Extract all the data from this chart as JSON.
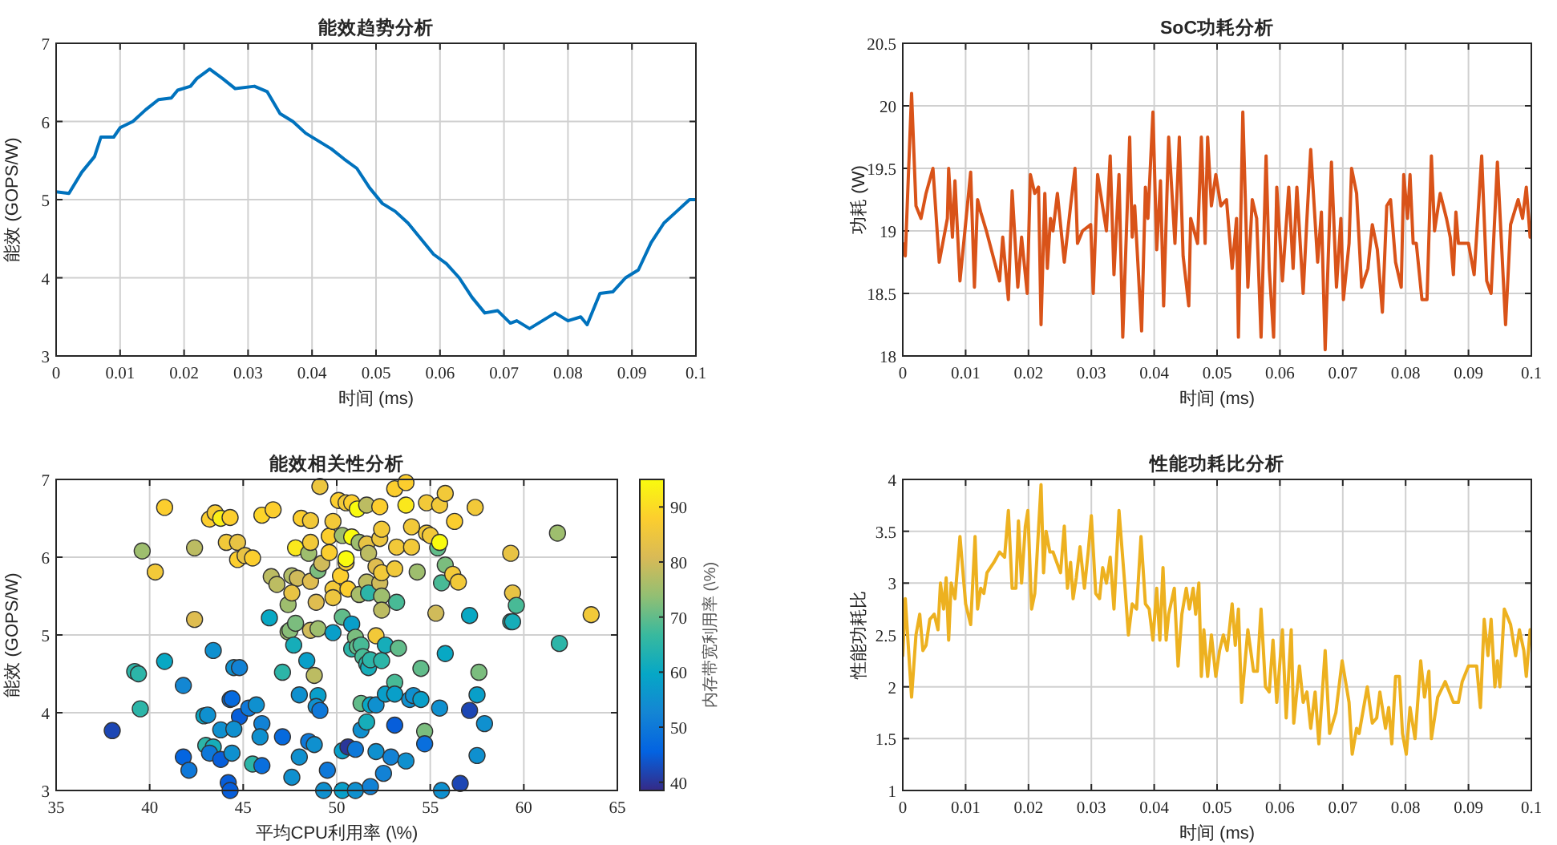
{
  "chart_data": [
    {
      "type": "line",
      "title": "能效趋势分析",
      "xlabel": "时间 (ms)",
      "ylabel": "能效 (GOPS/W)",
      "xlim": [
        0,
        0.1
      ],
      "ylim": [
        3,
        7
      ],
      "xticks": [
        0,
        0.01,
        0.02,
        0.03,
        0.04,
        0.05,
        0.06,
        0.07,
        0.08,
        0.09,
        0.1
      ],
      "yticks": [
        3,
        4,
        5,
        6,
        7
      ],
      "grid": true,
      "marker": "none",
      "series": [
        {
          "color": "#0072bd",
          "x": [
            0,
            0.002,
            0.004,
            0.006,
            0.007,
            0.009,
            0.01,
            0.012,
            0.014,
            0.016,
            0.018,
            0.019,
            0.021,
            0.022,
            0.024,
            0.026,
            0.028,
            0.031,
            0.033,
            0.035,
            0.037,
            0.039,
            0.041,
            0.043,
            0.045,
            0.047,
            0.049,
            0.051,
            0.053,
            0.055,
            0.057,
            0.059,
            0.061,
            0.063,
            0.065,
            0.067,
            0.069,
            0.071,
            0.072,
            0.074,
            0.076,
            0.078,
            0.08,
            0.082,
            0.083,
            0.085,
            0.087,
            0.089,
            0.091,
            0.093,
            0.095,
            0.097,
            0.099,
            0.1
          ],
          "values": [
            5.1,
            5.08,
            5.35,
            5.55,
            5.8,
            5.8,
            5.92,
            6.0,
            6.15,
            6.28,
            6.3,
            6.4,
            6.45,
            6.55,
            6.67,
            6.55,
            6.42,
            6.45,
            6.38,
            6.1,
            6.0,
            5.85,
            5.75,
            5.65,
            5.52,
            5.4,
            5.15,
            4.95,
            4.85,
            4.7,
            4.5,
            4.3,
            4.18,
            4.0,
            3.75,
            3.55,
            3.58,
            3.42,
            3.45,
            3.35,
            3.45,
            3.55,
            3.45,
            3.5,
            3.4,
            3.8,
            3.82,
            4.0,
            4.1,
            4.45,
            4.7,
            4.85,
            5.0,
            5.0
          ]
        }
      ]
    },
    {
      "type": "line",
      "title": "SoC功耗分析",
      "xlabel": "时间 (ms)",
      "ylabel": "功耗 (W)",
      "xlim": [
        0,
        0.1
      ],
      "ylim": [
        18,
        20.5
      ],
      "xticks": [
        0,
        0.01,
        0.02,
        0.03,
        0.04,
        0.05,
        0.06,
        0.07,
        0.08,
        0.09,
        0.1
      ],
      "yticks": [
        18,
        18.5,
        19,
        19.5,
        20,
        20.5
      ],
      "grid": true,
      "marker": "none",
      "series": [
        {
          "color": "#d95319",
          "x": [
            0,
            0.0004,
            0.0014,
            0.0021,
            0.0029,
            0.0037,
            0.0048,
            0.0058,
            0.0071,
            0.0073,
            0.0079,
            0.0083,
            0.0091,
            0.0108,
            0.0114,
            0.0119,
            0.0124,
            0.0133,
            0.0154,
            0.0159,
            0.0168,
            0.0174,
            0.0183,
            0.0189,
            0.0198,
            0.0203,
            0.021,
            0.0216,
            0.022,
            0.0226,
            0.023,
            0.0235,
            0.0239,
            0.0246,
            0.0257,
            0.0267,
            0.0274,
            0.0278,
            0.0286,
            0.0299,
            0.0303,
            0.031,
            0.0324,
            0.033,
            0.0336,
            0.0344,
            0.035,
            0.0361,
            0.0365,
            0.0369,
            0.038,
            0.0386,
            0.039,
            0.0398,
            0.0404,
            0.041,
            0.0415,
            0.0423,
            0.0433,
            0.044,
            0.0446,
            0.0455,
            0.0458,
            0.0469,
            0.0475,
            0.0481,
            0.0485,
            0.0491,
            0.0498,
            0.0506,
            0.0515,
            0.0524,
            0.0531,
            0.0534,
            0.0541,
            0.0549,
            0.0556,
            0.0563,
            0.057,
            0.0578,
            0.0583,
            0.059,
            0.0595,
            0.0604,
            0.0614,
            0.0621,
            0.0627,
            0.0637,
            0.0643,
            0.0649,
            0.066,
            0.0666,
            0.0672,
            0.0682,
            0.069,
            0.0697,
            0.0701,
            0.071,
            0.0714,
            0.0722,
            0.073,
            0.074,
            0.0747,
            0.0755,
            0.0763,
            0.077,
            0.0776,
            0.0784,
            0.0793,
            0.0797,
            0.0803,
            0.0807,
            0.0812,
            0.0817,
            0.0826,
            0.0834,
            0.0841,
            0.0846,
            0.0855,
            0.0865,
            0.0871,
            0.0876,
            0.088,
            0.0884,
            0.0888,
            0.09,
            0.0909,
            0.0921,
            0.0929,
            0.0936,
            0.0946,
            0.0959,
            0.0967,
            0.0979,
            0.0986,
            0.0992,
            0.0998
          ],
          "values": [
            18.9,
            18.8,
            20.1,
            19.2,
            19.1,
            19.3,
            19.5,
            18.75,
            19.1,
            19.5,
            18.95,
            19.4,
            18.6,
            19.47,
            18.55,
            19.25,
            19.15,
            19.0,
            18.6,
            18.95,
            18.45,
            19.32,
            18.55,
            18.95,
            18.5,
            19.45,
            19.3,
            19.35,
            18.25,
            19.3,
            18.7,
            19.1,
            19.0,
            19.3,
            18.75,
            19.2,
            19.5,
            18.9,
            19.0,
            19.05,
            18.5,
            19.45,
            19.0,
            19.6,
            18.65,
            19.45,
            18.15,
            19.75,
            18.95,
            19.2,
            18.2,
            19.35,
            19.1,
            19.95,
            18.85,
            19.4,
            18.4,
            19.75,
            18.9,
            19.75,
            18.8,
            18.4,
            19.1,
            18.9,
            19.75,
            18.9,
            19.75,
            19.2,
            19.45,
            19.2,
            19.25,
            18.7,
            19.1,
            18.15,
            19.95,
            18.55,
            19.25,
            19.1,
            18.15,
            19.6,
            18.7,
            18.15,
            19.35,
            18.6,
            19.35,
            18.7,
            19.35,
            18.5,
            19.1,
            19.65,
            18.75,
            19.15,
            18.05,
            19.55,
            18.55,
            19.1,
            18.45,
            18.9,
            19.5,
            19.3,
            18.55,
            18.7,
            19.05,
            18.85,
            18.35,
            19.2,
            19.25,
            18.75,
            18.55,
            19.45,
            19.1,
            19.45,
            18.9,
            18.9,
            18.45,
            18.45,
            19.6,
            19.0,
            19.3,
            19.1,
            18.95,
            18.65,
            19.15,
            18.9,
            18.9,
            18.9,
            18.65,
            19.6,
            18.6,
            18.5,
            19.55,
            18.25,
            19.05,
            19.25,
            19.1,
            19.35,
            18.95
          ]
        }
      ]
    },
    {
      "type": "scatter",
      "title": "能效相关性分析",
      "xlabel": "平均CPU利用率 (\\%)",
      "ylabel": "能效 (GOPS/W)",
      "clabel": "内存带宽利用率 (\\%)",
      "xlim": [
        35,
        65
      ],
      "ylim": [
        3,
        7
      ],
      "xticks": [
        35,
        40,
        45,
        50,
        55,
        60,
        65
      ],
      "yticks": [
        3,
        4,
        5,
        6,
        7
      ],
      "clim": [
        38.5,
        95
      ],
      "cticks": [
        40,
        50,
        60,
        70,
        80,
        90
      ],
      "grid": true,
      "marker": "circle",
      "x": [
        38.0,
        40.8,
        39.6,
        40.3,
        39.2,
        39.4,
        39.5,
        40.8,
        41.8,
        41.8,
        42.1,
        42.4,
        42.4,
        43.2,
        43.5,
        43.8,
        44.3,
        44.1,
        44.7,
        44.7,
        45.1,
        45.5,
        46.0,
        46.6,
        43.4,
        42.9,
        43.1,
        43.0,
        43.4,
        43.2,
        43.8,
        43.8,
        44.3,
        44.4,
        44.5,
        44.8,
        44.8,
        44.5,
        44.4,
        44.2,
        44.3,
        45.3,
        45.7,
        45.5,
        46.0,
        46.0,
        45.9,
        46.4,
        46.5,
        46.8,
        47.1,
        47.1,
        47.4,
        47.5,
        47.4,
        47.6,
        47.9,
        47.6,
        47.7,
        47.8,
        48.1,
        47.8,
        48.0,
        48.0,
        47.6,
        48.4,
        48.5,
        48.8,
        48.5,
        48.6,
        48.6,
        48.6,
        48.6,
        48.8,
        48.9,
        49.0,
        49.0,
        49.0,
        48.9,
        49.1,
        49.1,
        49.2,
        49.3,
        49.5,
        49.6,
        49.6,
        49.8,
        49.8,
        49.8,
        49.8,
        50.1,
        50.2,
        50.3,
        50.3,
        50.3,
        50.3,
        50.6,
        50.5,
        50.5,
        50.5,
        50.6,
        50.8,
        50.8,
        50.8,
        50.8,
        51.0,
        51.0,
        51.0,
        51.1,
        51.1,
        51.2,
        51.2,
        51.3,
        51.3,
        51.3,
        51.4,
        51.6,
        51.6,
        51.6,
        51.6,
        51.6,
        51.7,
        51.7,
        51.7,
        51.8,
        51.8,
        51.8,
        52.1,
        52.1,
        52.1,
        52.1,
        52.3,
        52.3,
        52.3,
        52.4,
        52.4,
        52.4,
        52.4,
        52.4,
        52.5,
        52.6,
        52.6,
        52.9,
        53.1,
        53.1,
        53.1,
        53.1,
        53.1,
        53.2,
        53.2,
        53.3,
        53.7,
        53.7,
        53.7,
        53.9,
        54.0,
        54.0,
        54.1,
        54.3,
        54.5,
        54.5,
        54.7,
        54.7,
        54.8,
        54.8,
        55.0,
        55.3,
        55.4,
        55.5,
        55.5,
        55.5,
        55.6,
        55.6,
        55.8,
        55.8,
        55.8,
        56.2,
        56.3,
        56.5,
        56.6,
        57.1,
        57.1,
        57.4,
        57.5,
        57.5,
        57.6,
        57.9,
        59.3,
        59.3,
        59.4,
        59.4,
        59.6,
        61.8,
        61.9,
        63.6
      ],
      "values": [
        3.77,
        6.64,
        6.08,
        5.81,
        4.53,
        4.5,
        4.05,
        4.66,
        4.35,
        3.43,
        3.26,
        6.12,
        5.2,
        6.49,
        6.57,
        6.5,
        6.51,
        6.19,
        6.19,
        5.97,
        6.02,
        5.99,
        6.54,
        6.61,
        4.8,
        3.96,
        3.97,
        3.58,
        3.56,
        3.48,
        3.4,
        3.78,
        4.17,
        4.18,
        4.58,
        4.58,
        3.95,
        3.79,
        3.48,
        3.1,
        3.0,
        4.06,
        4.1,
        3.34,
        3.32,
        3.86,
        3.69,
        5.22,
        5.75,
        5.65,
        3.69,
        4.52,
        5.04,
        5.06,
        5.39,
        5.76,
        5.73,
        5.54,
        4.87,
        5.15,
        6.5,
        6.12,
        4.23,
        3.43,
        3.17,
        4.67,
        3.63,
        3.59,
        6.05,
        6.19,
        6.47,
        5.06,
        5.69,
        4.48,
        5.42,
        5.83,
        5.08,
        4.22,
        4.08,
        4.03,
        6.91,
        5.92,
        3.0,
        3.26,
        6.06,
        6.27,
        6.46,
        5.59,
        5.48,
        5.03,
        6.73,
        5.76,
        5.23,
        6.28,
        3.51,
        3.0,
        3.56,
        5.93,
        5.98,
        6.7,
        5.59,
        5.14,
        4.82,
        6.26,
        6.7,
        3.0,
        3.53,
        4.97,
        4.85,
        6.62,
        5.52,
        6.19,
        4.12,
        3.78,
        4.87,
        4.72,
        3.88,
        6.17,
        6.67,
        5.68,
        4.63,
        4.58,
        5.54,
        6.05,
        4.68,
        3.05,
        4.1,
        5.88,
        4.99,
        3.5,
        4.1,
        5.67,
        6.65,
        6.24,
        6.36,
        5.8,
        5.5,
        5.32,
        4.67,
        3.22,
        4.24,
        4.87,
        3.43,
        5.85,
        3.84,
        6.88,
        4.39,
        4.24,
        5.42,
        6.13,
        4.83,
        6.96,
        6.67,
        3.38,
        4.17,
        6.39,
        6.13,
        4.22,
        5.81,
        4.17,
        4.57,
        3.76,
        3.6,
        6.7,
        6.31,
        6.28,
        5.28,
        6.12,
        6.67,
        6.19,
        4.06,
        5.67,
        3.0,
        6.82,
        4.76,
        5.9,
        5.78,
        6.46,
        5.68,
        3.09,
        4.03,
        5.25,
        6.64,
        3.45,
        4.23,
        4.52,
        3.86,
        6.05,
        5.17,
        5.17,
        5.54,
        5.38,
        6.31,
        4.89,
        5.26
      ],
      "cvalues": [
        42,
        88,
        75,
        86,
        65,
        65,
        65,
        60,
        53,
        46,
        50,
        78,
        82,
        88,
        87,
        93,
        88,
        86,
        84,
        88,
        84,
        88,
        89,
        88,
        55,
        60,
        55,
        65,
        62,
        50,
        45,
        55,
        48,
        47,
        55,
        52,
        45,
        55,
        55,
        45,
        45,
        50,
        55,
        65,
        48,
        52,
        55,
        60,
        78,
        78,
        47,
        65,
        75,
        73,
        75,
        77,
        80,
        84,
        62,
        72,
        88,
        92,
        55,
        55,
        55,
        58,
        50,
        55,
        75,
        86,
        86,
        80,
        82,
        78,
        82,
        72,
        75,
        58,
        55,
        50,
        85,
        80,
        55,
        50,
        88,
        88,
        86,
        86,
        85,
        58,
        88,
        88,
        70,
        75,
        58,
        58,
        40,
        86,
        95,
        86,
        88,
        58,
        65,
        95,
        88,
        55,
        50,
        72,
        70,
        95,
        76,
        75,
        70,
        55,
        68,
        68,
        62,
        84,
        78,
        78,
        65,
        62,
        65,
        78,
        65,
        52,
        60,
        82,
        86,
        55,
        55,
        80,
        88,
        85,
        86,
        86,
        75,
        78,
        65,
        52,
        58,
        62,
        52,
        86,
        45,
        88,
        68,
        58,
        68,
        86,
        70,
        88,
        92,
        55,
        55,
        86,
        86,
        55,
        75,
        58,
        70,
        72,
        48,
        86,
        86,
        86,
        80,
        70,
        86,
        95,
        55,
        68,
        55,
        86,
        60,
        72,
        86,
        88,
        86,
        42,
        42,
        60,
        86,
        55,
        58,
        72,
        55,
        84,
        65,
        62,
        84,
        68,
        75,
        65,
        86
      ]
    },
    {
      "type": "line",
      "title": "性能功耗比分析",
      "xlabel": "时间 (ms)",
      "ylabel": "性能功耗比",
      "xlim": [
        0,
        0.1
      ],
      "ylim": [
        1,
        4
      ],
      "xticks": [
        0,
        0.01,
        0.02,
        0.03,
        0.04,
        0.05,
        0.06,
        0.07,
        0.08,
        0.09,
        0.1
      ],
      "yticks": [
        1,
        1.5,
        2,
        2.5,
        3,
        3.5,
        4
      ],
      "grid": true,
      "marker": "none",
      "series": [
        {
          "color": "#edb120",
          "x": [
            0,
            0.0004,
            0.0014,
            0.0021,
            0.0027,
            0.0032,
            0.0037,
            0.0043,
            0.005,
            0.0056,
            0.006,
            0.0065,
            0.0069,
            0.0073,
            0.0077,
            0.0083,
            0.0091,
            0.01,
            0.0108,
            0.0115,
            0.0119,
            0.0124,
            0.0129,
            0.0134,
            0.0145,
            0.0154,
            0.0162,
            0.0168,
            0.0174,
            0.018,
            0.0184,
            0.0189,
            0.0195,
            0.0199,
            0.0205,
            0.021,
            0.0213,
            0.022,
            0.0224,
            0.0228,
            0.0234,
            0.0239,
            0.0245,
            0.0251,
            0.0257,
            0.0262,
            0.0267,
            0.0271,
            0.0276,
            0.0282,
            0.0289,
            0.0295,
            0.03,
            0.0307,
            0.0313,
            0.0318,
            0.0324,
            0.033,
            0.0336,
            0.0344,
            0.0353,
            0.0359,
            0.0365,
            0.0372,
            0.0379,
            0.0386,
            0.0392,
            0.0398,
            0.0404,
            0.0409,
            0.0414,
            0.0419,
            0.0423,
            0.0432,
            0.0438,
            0.0444,
            0.0451,
            0.0456,
            0.0462,
            0.0466,
            0.0471,
            0.0475,
            0.0479,
            0.0485,
            0.0491,
            0.0498,
            0.0504,
            0.051,
            0.0516,
            0.0524,
            0.0529,
            0.0534,
            0.0539,
            0.0549,
            0.0558,
            0.0564,
            0.057,
            0.0577,
            0.0583,
            0.0589,
            0.0595,
            0.0604,
            0.061,
            0.0618,
            0.0622,
            0.0631,
            0.0637,
            0.0643,
            0.0649,
            0.0656,
            0.0662,
            0.0672,
            0.0679,
            0.0689,
            0.0699,
            0.071,
            0.0715,
            0.0722,
            0.0726,
            0.0739,
            0.0747,
            0.0754,
            0.0759,
            0.0768,
            0.0773,
            0.0778,
            0.0784,
            0.079,
            0.0795,
            0.0801,
            0.0807,
            0.0815,
            0.0824,
            0.083,
            0.0837,
            0.0841,
            0.0851,
            0.0863,
            0.0876,
            0.0884,
            0.089,
            0.09,
            0.0913,
            0.0919,
            0.0925,
            0.0931,
            0.0936,
            0.0942,
            0.0946,
            0.095,
            0.0957,
            0.0967,
            0.0975,
            0.0981,
            0.0988,
            0.0992,
            0.0998
          ],
          "values": [
            2.3,
            2.85,
            1.9,
            2.5,
            2.7,
            2.35,
            2.4,
            2.65,
            2.7,
            2.55,
            3.0,
            2.75,
            3.05,
            2.45,
            3.0,
            2.85,
            3.45,
            2.8,
            2.6,
            3.45,
            2.75,
            2.95,
            2.9,
            3.1,
            3.2,
            3.3,
            3.25,
            3.7,
            2.95,
            2.95,
            3.6,
            3.0,
            3.55,
            3.7,
            2.75,
            2.9,
            3.2,
            3.95,
            3.1,
            3.5,
            3.3,
            3.3,
            3.2,
            3.1,
            3.55,
            2.95,
            3.2,
            2.85,
            3.05,
            3.35,
            2.95,
            3.3,
            3.65,
            2.9,
            2.85,
            3.15,
            3.0,
            3.25,
            2.75,
            3.7,
            3.0,
            2.5,
            2.8,
            2.75,
            3.45,
            2.8,
            2.75,
            2.45,
            2.95,
            2.45,
            3.15,
            2.45,
            2.7,
            2.95,
            2.2,
            2.7,
            2.95,
            2.75,
            2.95,
            2.7,
            3.0,
            2.1,
            2.55,
            2.1,
            2.5,
            2.1,
            2.35,
            2.5,
            2.35,
            2.8,
            2.4,
            2.75,
            1.85,
            2.55,
            2.15,
            2.15,
            2.75,
            2.0,
            1.95,
            2.45,
            1.85,
            2.55,
            1.7,
            2.55,
            1.65,
            2.2,
            1.85,
            1.95,
            1.6,
            1.95,
            1.45,
            2.35,
            1.55,
            1.75,
            2.25,
            1.85,
            1.35,
            1.6,
            1.55,
            2.0,
            1.65,
            1.7,
            1.95,
            1.6,
            1.8,
            1.45,
            2.1,
            2.1,
            1.55,
            1.35,
            1.8,
            1.5,
            2.25,
            1.9,
            2.15,
            1.5,
            1.9,
            2.05,
            1.85,
            1.85,
            2.05,
            2.2,
            2.2,
            1.8,
            2.65,
            2.3,
            2.65,
            2.0,
            2.25,
            2.0,
            2.75,
            2.6,
            2.3,
            2.55,
            2.35,
            2.1,
            2.55
          ]
        }
      ]
    }
  ]
}
